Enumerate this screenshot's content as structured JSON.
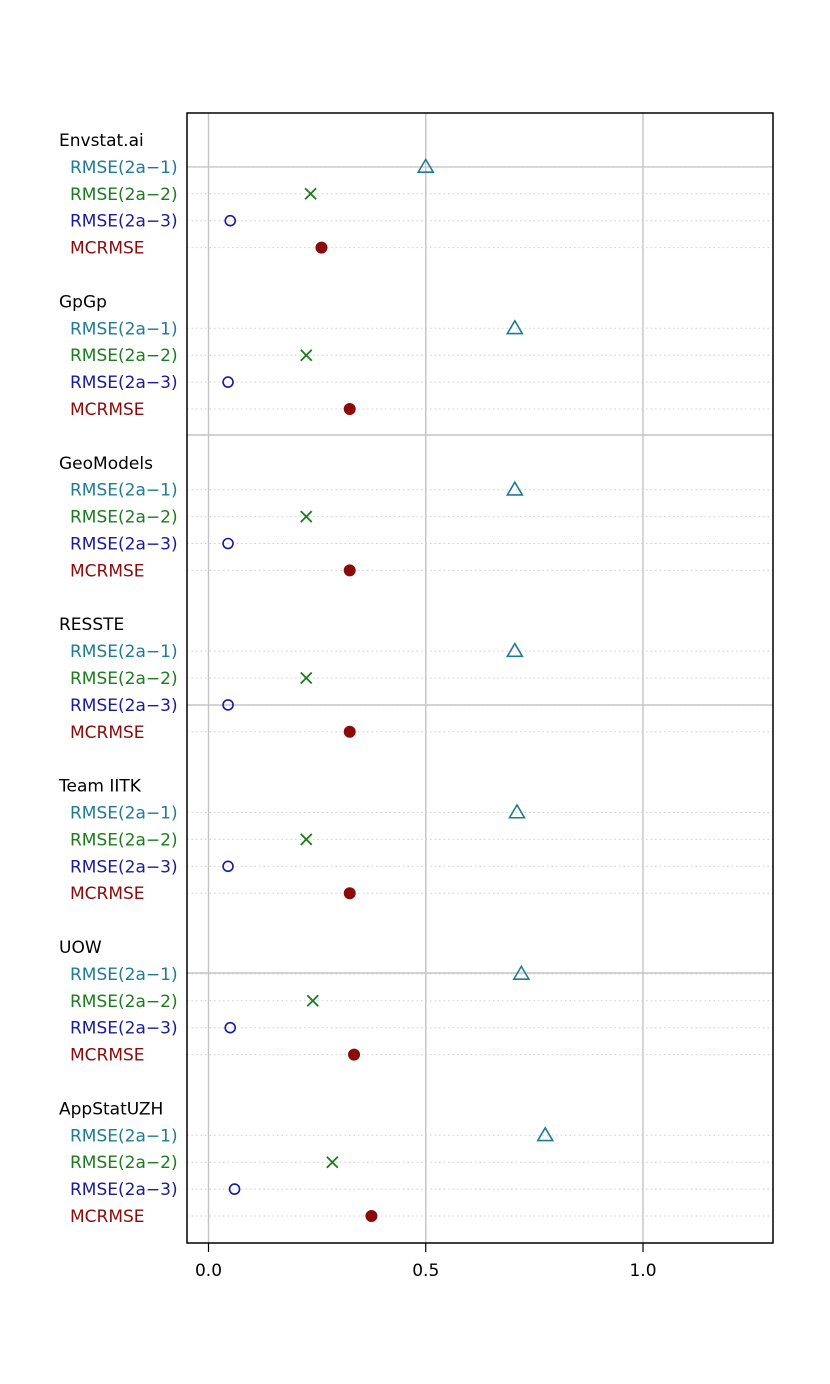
{
  "chart_data": {
    "type": "dotplot",
    "xlim": [
      -0.1,
      2.6
    ],
    "xticks": [
      "0.0",
      "0.5",
      "1.0",
      "1.5",
      "2.0",
      "2.5"
    ],
    "grid": true,
    "metrics": [
      {
        "label": "RMSE(2a−1)",
        "color": "#1F7A94",
        "marker": "triangle"
      },
      {
        "label": "RMSE(2a−2)",
        "color": "#1E7A1E",
        "marker": "cross"
      },
      {
        "label": "RMSE(2a−3)",
        "color": "#1A1A9A",
        "marker": "circle-open"
      },
      {
        "label": "MCRMSE",
        "color": "#8B0A0A",
        "marker": "circle-filled"
      }
    ],
    "groups": [
      {
        "name": "Envstat.ai",
        "values": [
          0.5,
          0.235,
          0.05,
          0.26
        ]
      },
      {
        "name": "GpGp",
        "values": [
          0.705,
          0.225,
          0.045,
          0.325
        ]
      },
      {
        "name": "GeoModels",
        "values": [
          0.705,
          0.225,
          0.045,
          0.325
        ]
      },
      {
        "name": "RESSTE",
        "values": [
          0.705,
          0.225,
          0.045,
          0.325
        ]
      },
      {
        "name": "Team IITK",
        "values": [
          0.71,
          0.225,
          0.045,
          0.325
        ]
      },
      {
        "name": "UOW",
        "values": [
          0.72,
          0.24,
          0.05,
          0.335
        ]
      },
      {
        "name": "AppStatUZH",
        "values": [
          0.775,
          0.285,
          0.06,
          0.375
        ]
      }
    ]
  }
}
